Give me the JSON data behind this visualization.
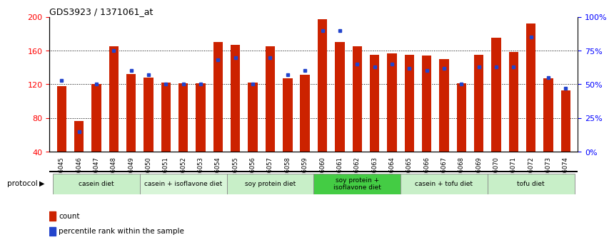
{
  "title": "GDS3923 / 1371061_at",
  "samples": [
    "GSM586045",
    "GSM586046",
    "GSM586047",
    "GSM586048",
    "GSM586049",
    "GSM586050",
    "GSM586051",
    "GSM586052",
    "GSM586053",
    "GSM586054",
    "GSM586055",
    "GSM586056",
    "GSM586057",
    "GSM586058",
    "GSM586059",
    "GSM586060",
    "GSM586061",
    "GSM586062",
    "GSM586063",
    "GSM586064",
    "GSM586065",
    "GSM586066",
    "GSM586067",
    "GSM586068",
    "GSM586069",
    "GSM586070",
    "GSM586071",
    "GSM586072",
    "GSM586073",
    "GSM586074"
  ],
  "counts": [
    118,
    76,
    120,
    165,
    132,
    128,
    122,
    121,
    121,
    170,
    167,
    122,
    165,
    127,
    131,
    197,
    170,
    165,
    155,
    157,
    155,
    154,
    150,
    121,
    155,
    175,
    158,
    192,
    127,
    113
  ],
  "percentile_pct": [
    53,
    15,
    50,
    75,
    60,
    57,
    50,
    50,
    50,
    68,
    70,
    50,
    70,
    57,
    60,
    90,
    90,
    65,
    63,
    65,
    62,
    60,
    62,
    50,
    63,
    63,
    63,
    85,
    55,
    47
  ],
  "protocols": [
    {
      "label": "casein diet",
      "start": 0,
      "end": 5,
      "color": "#c8efc8"
    },
    {
      "label": "casein + isoflavone diet",
      "start": 5,
      "end": 10,
      "color": "#d8f5d8"
    },
    {
      "label": "soy protein diet",
      "start": 10,
      "end": 15,
      "color": "#c8efc8"
    },
    {
      "label": "soy protein +\nisoflavone diet",
      "start": 15,
      "end": 20,
      "color": "#44cc44"
    },
    {
      "label": "casein + tofu diet",
      "start": 20,
      "end": 25,
      "color": "#c8efc8"
    },
    {
      "label": "tofu diet",
      "start": 25,
      "end": 30,
      "color": "#c8efc8"
    }
  ],
  "bar_color": "#cc2200",
  "dot_color": "#2244cc",
  "ylim_left": [
    40,
    200
  ],
  "ylim_right": [
    0,
    100
  ],
  "yticks_left": [
    40,
    80,
    120,
    160,
    200
  ],
  "yticks_right": [
    0,
    25,
    50,
    75,
    100
  ],
  "bar_width": 0.55
}
